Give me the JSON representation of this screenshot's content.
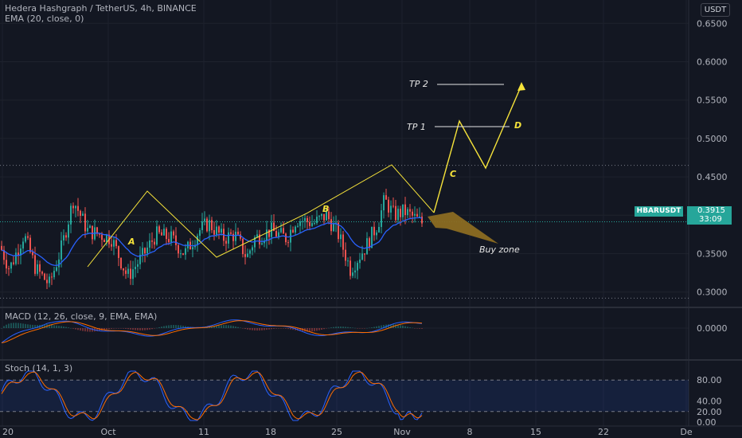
{
  "header": {
    "title": "Hedera Hashgraph / TetherUS, 4h, BINANCE",
    "indicator": "EMA (20, close, 0)",
    "currency": "USDT"
  },
  "price_badge": {
    "symbol": "HBARUSDT",
    "price": "0.3915",
    "countdown": "33:09"
  },
  "chart_data": [
    {
      "type": "line",
      "panel": "price",
      "candles_estimated_close": {
        "x": [
          "20",
          "Oct",
          "11",
          "18",
          "25",
          "Nov"
        ],
        "values": [
          0.35,
          0.31,
          0.39,
          0.34,
          0.37,
          0.4
        ]
      },
      "yticks": [
        "0.6500",
        "0.6000",
        "0.5500",
        "0.5000",
        "0.4500",
        "0.4000",
        "0.3500",
        "0.3000"
      ],
      "ylim": [
        0.28,
        0.67
      ],
      "series": [
        {
          "name": "EMA (20, close, 0)",
          "color": "#2962ff"
        }
      ],
      "annotations": [
        "A",
        "B",
        "C",
        "D",
        "TP 1",
        "TP 2",
        "Buy zone"
      ],
      "horizontal_levels": [
        0.465,
        0.292
      ]
    },
    {
      "type": "line",
      "panel": "macd",
      "title": "MACD (12, 26, close, 9, EMA, EMA)",
      "yticks": [
        "0.0000"
      ],
      "series": [
        {
          "name": "MACD",
          "color": "#2962ff"
        },
        {
          "name": "Signal",
          "color": "#ff6d00"
        }
      ]
    },
    {
      "type": "line",
      "panel": "stoch",
      "title": "Stoch (14, 1, 3)",
      "yticks": [
        "80.00",
        "40.00",
        "20.00",
        "0.00"
      ],
      "ylim": [
        0,
        100
      ],
      "series": [
        {
          "name": "%K",
          "color": "#2962ff"
        },
        {
          "name": "%D",
          "color": "#ff6d00"
        }
      ]
    }
  ],
  "xaxis": {
    "ticks": [
      "20",
      "Oct",
      "11",
      "18",
      "25",
      "Nov",
      "8",
      "15",
      "22",
      "De"
    ]
  },
  "colors": {
    "up": "#26a69a",
    "down": "#ef5350",
    "pattern": "#f5e23a",
    "badge": "#26a69a"
  }
}
